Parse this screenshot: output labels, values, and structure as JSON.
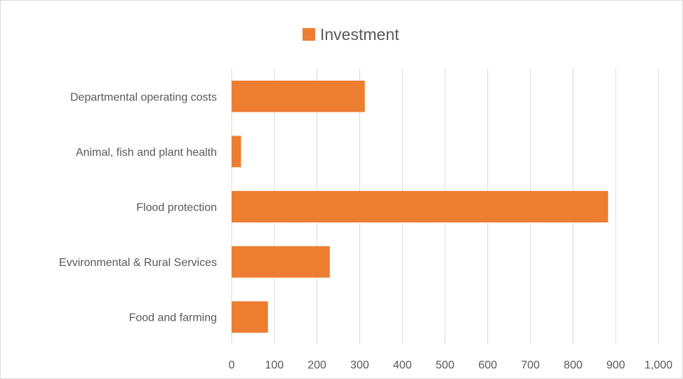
{
  "chart_data": {
    "type": "bar",
    "orientation": "horizontal",
    "categories": [
      "Departmental operating costs",
      "Animal, fish and plant health",
      "Flood protection",
      "Evvironmental & Rural Services",
      "Food and farming"
    ],
    "series": [
      {
        "name": "Investment",
        "values": [
          312,
          22,
          882,
          230,
          85
        ],
        "color": "#ED7D31"
      }
    ],
    "xlim": [
      0,
      1000
    ],
    "x_ticks": [
      0,
      100,
      200,
      300,
      400,
      500,
      600,
      700,
      800,
      900,
      1000
    ],
    "x_tick_labels": [
      "0",
      "100",
      "200",
      "300",
      "400",
      "500",
      "600",
      "700",
      "800",
      "900",
      "1,000"
    ],
    "grid": true,
    "legend_position": "top",
    "title": "",
    "xlabel": "",
    "ylabel": ""
  },
  "colors": {
    "bar": "#ED7D31",
    "gridline": "#d9d9d9",
    "text": "#595959"
  }
}
